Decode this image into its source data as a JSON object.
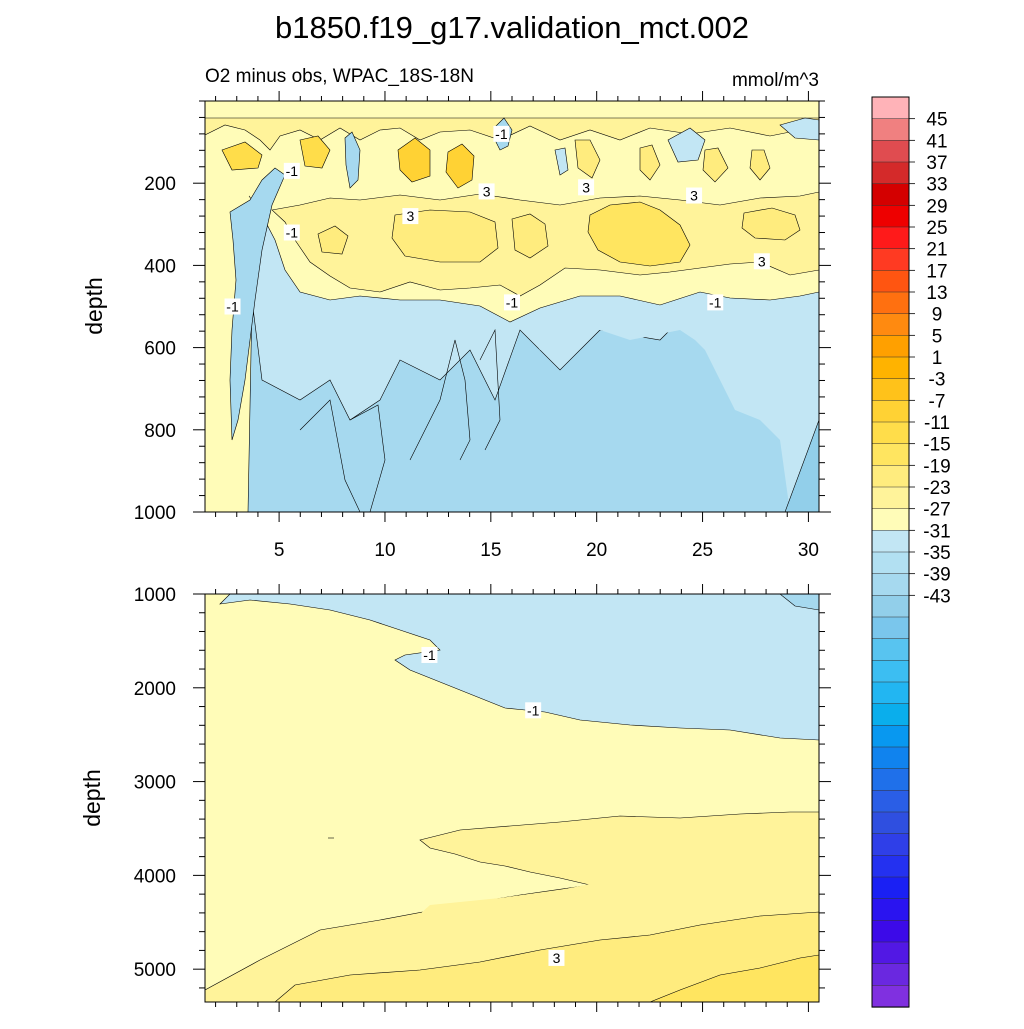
{
  "chart_data": {
    "type": "contour",
    "title": "b1850.f19_g17.validation_mct.002",
    "subtitle": "O2 minus obs, WPAC_18S-18N",
    "units": "mmol/m^3",
    "ylabel": "depth",
    "xlabel": "",
    "x_ticks": [
      5,
      10,
      15,
      20,
      25,
      30
    ],
    "xlim": [
      1.5,
      30.5
    ],
    "panels": [
      {
        "name": "upper",
        "ylim": [
          0,
          1000
        ],
        "y_ticks": [
          200,
          400,
          600,
          800,
          1000
        ],
        "contour_labels": [
          {
            "x": 15.5,
            "depth": 80,
            "label": "-1"
          },
          {
            "x": 5.6,
            "depth": 170,
            "label": "-1"
          },
          {
            "x": 5.6,
            "depth": 320,
            "label": "-1"
          },
          {
            "x": 2.8,
            "depth": 500,
            "label": "-1"
          },
          {
            "x": 14.8,
            "depth": 220,
            "label": "3"
          },
          {
            "x": 11.2,
            "depth": 280,
            "label": "3"
          },
          {
            "x": 19.5,
            "depth": 210,
            "label": "3"
          },
          {
            "x": 24.6,
            "depth": 230,
            "label": "3"
          },
          {
            "x": 27.8,
            "depth": 390,
            "label": "3"
          },
          {
            "x": 16.0,
            "depth": 490,
            "label": "-1"
          },
          {
            "x": 25.6,
            "depth": 490,
            "label": "-1"
          }
        ]
      },
      {
        "name": "lower",
        "ylim": [
          1000,
          5350
        ],
        "y_ticks": [
          1000,
          2000,
          3000,
          4000,
          5000
        ],
        "contour_labels": [
          {
            "x": 12.1,
            "depth": 1650,
            "label": "-1"
          },
          {
            "x": 17.0,
            "depth": 2240,
            "label": "-1"
          },
          {
            "x": 18.1,
            "depth": 4880,
            "label": "3"
          }
        ]
      }
    ],
    "colorbar": {
      "labels": [
        "45",
        "41",
        "37",
        "33",
        "29",
        "25",
        "21",
        "17",
        "13",
        "9",
        "5",
        "1",
        "-3",
        "-7",
        "-11",
        "-15",
        "-19",
        "-23",
        "-27",
        "-31",
        "-35",
        "-39",
        "-43"
      ],
      "colors": [
        "#ffb3b8",
        "#f08080",
        "#e04c50",
        "#d42a2a",
        "#d40000",
        "#ee0000",
        "#ff1a1a",
        "#ff3a22",
        "#ff5511",
        "#ff7010",
        "#ff8a10",
        "#ffa000",
        "#ffb300",
        "#ffc21a",
        "#ffd234",
        "#ffdd4a",
        "#ffe560",
        "#ffec7e",
        "#fff39a",
        "#fffcb8",
        "#c2e6f4",
        "#b2e0f2",
        "#a6d9ef",
        "#92cfea",
        "#7ac6ec",
        "#58c4f0",
        "#3cbef2",
        "#22b6f2",
        "#0aaeec",
        "#0898f0",
        "#1083ee",
        "#1f70ea",
        "#2a5ee6",
        "#2f4fe0",
        "#2f3fe8",
        "#2431f0",
        "#1a20f4",
        "#2a14f0",
        "#3c0ae8",
        "#5218e4",
        "#6a28e0",
        "#8030e0"
      ]
    }
  }
}
